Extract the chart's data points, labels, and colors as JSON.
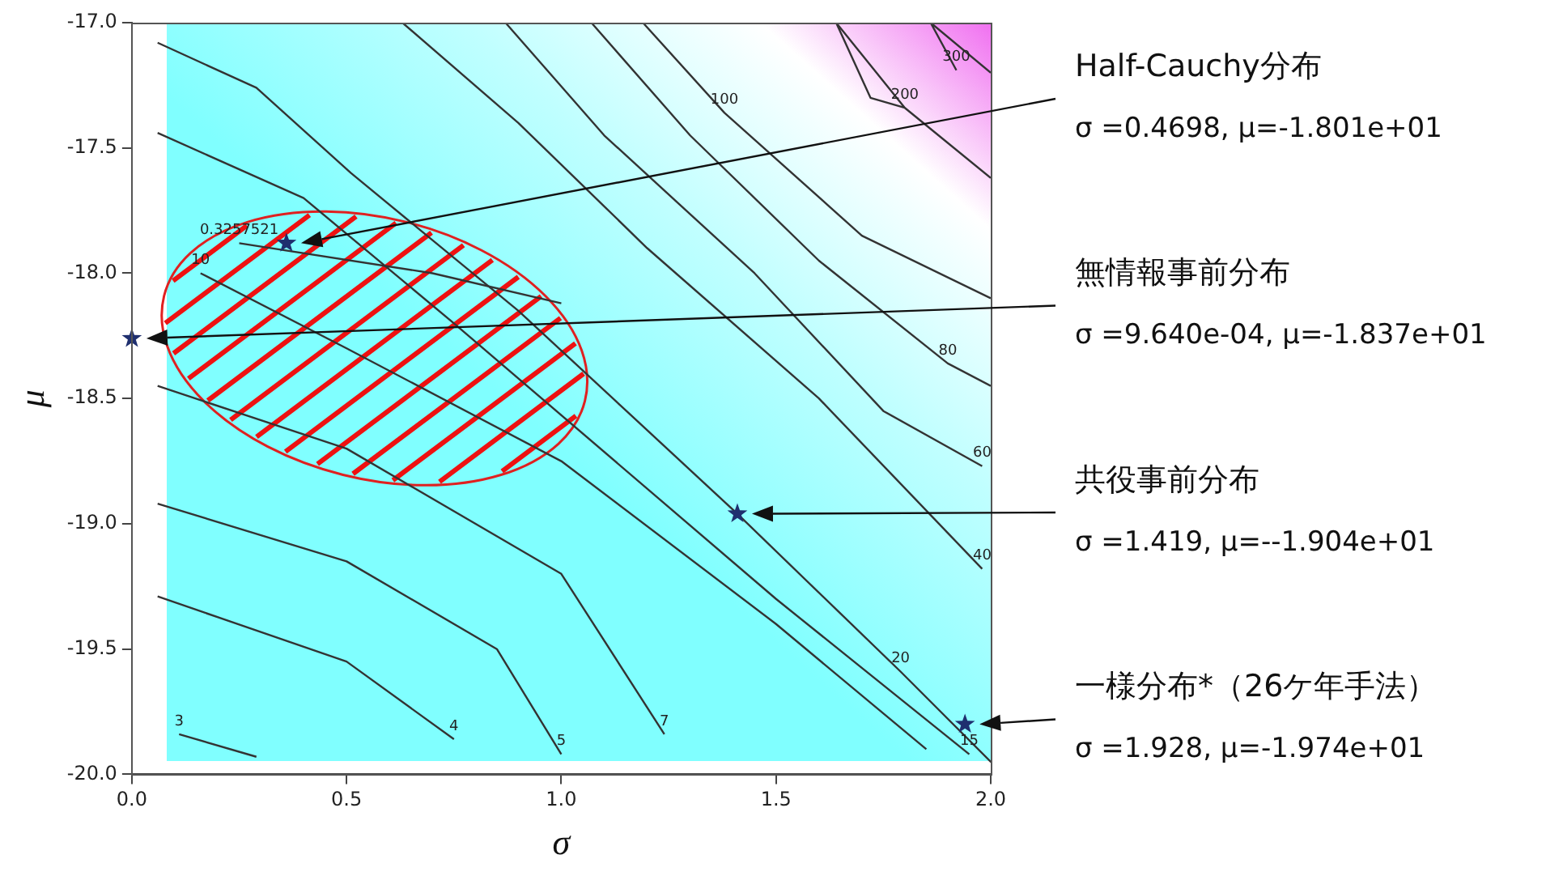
{
  "chart_data": {
    "type": "line",
    "xlabel": "σ",
    "ylabel": "μ",
    "xlim": [
      0,
      2
    ],
    "ylim": [
      -20,
      -17
    ],
    "xticks": [
      {
        "value": 0,
        "label": "0.0"
      },
      {
        "value": 0.5,
        "label": "0.5"
      },
      {
        "value": 1,
        "label": "1.0"
      },
      {
        "value": 1.5,
        "label": "1.5"
      },
      {
        "value": 2,
        "label": "2.0"
      }
    ],
    "yticks": [
      {
        "value": -20,
        "label": "-20.0"
      },
      {
        "value": -19.5,
        "label": "-19.5"
      },
      {
        "value": -19,
        "label": "-19.0"
      },
      {
        "value": -18.5,
        "label": "-18.5"
      },
      {
        "value": -18,
        "label": "-18.0"
      },
      {
        "value": -17.5,
        "label": "-17.5"
      },
      {
        "value": -17,
        "label": "-17.0"
      }
    ],
    "marker": "none",
    "legend": false,
    "series": [
      {
        "name": "300",
        "color": "#333333",
        "x": [
          1.92,
          1.86,
          2.0
        ],
        "values": [
          -17.19,
          -17.0,
          -17.2
        ]
      },
      {
        "name": "200",
        "color": "#333333",
        "x": [
          1.8,
          1.72,
          1.64,
          1.8,
          2.0
        ],
        "values": [
          -17.34,
          -17.3,
          -17.0,
          -17.34,
          -17.62
        ]
      },
      {
        "name": "100",
        "color": "#333333",
        "x": [
          1.38,
          1.19,
          1.38,
          1.7,
          2.0
        ],
        "values": [
          -17.36,
          -17.0,
          -17.36,
          -17.85,
          -18.1
        ]
      },
      {
        "name": "80",
        "color": "#333333",
        "x": [
          1.9,
          1.6,
          1.3,
          1.07,
          1.3,
          1.6,
          1.9,
          2.0
        ],
        "values": [
          -18.36,
          -17.95,
          -17.45,
          -17.0,
          -17.45,
          -17.95,
          -18.36,
          -18.45
        ]
      },
      {
        "name": "60",
        "color": "#333333",
        "x": [
          1.98,
          1.75,
          1.45,
          1.1,
          0.87
        ],
        "values": [
          -18.77,
          -18.55,
          -18.0,
          -17.45,
          -17.0
        ]
      },
      {
        "name": "40",
        "color": "#333333",
        "x": [
          1.98,
          1.6,
          1.2,
          0.9,
          0.63
        ],
        "values": [
          -19.18,
          -18.5,
          -17.9,
          -17.4,
          -17.0
        ]
      },
      {
        "name": "20",
        "color": "#333333",
        "x": [
          1.79,
          2.0,
          1.79,
          1.41,
          0.9,
          0.51,
          0.29,
          0.06
        ],
        "values": [
          -19.59,
          -19.95,
          -19.59,
          -18.96,
          -18.15,
          -17.6,
          -17.26,
          -17.08
        ]
      },
      {
        "name": "15",
        "color": "#333333",
        "x": [
          1.95,
          1.5,
          0.75,
          0.4,
          0.06
        ],
        "values": [
          -19.92,
          -19.3,
          -18.2,
          -17.7,
          -17.44
        ]
      },
      {
        "name": "0.3257521",
        "color": "#333333",
        "x": [
          0.25,
          0.7,
          1.0
        ],
        "values": [
          -17.88,
          -18.0,
          -18.12
        ]
      },
      {
        "name": "10",
        "color": "#333333",
        "x": [
          0.16,
          0.5,
          1.0,
          1.5,
          1.85
        ],
        "values": [
          -18.0,
          -18.3,
          -18.75,
          -19.4,
          -19.9
        ]
      },
      {
        "name": "7",
        "color": "#333333",
        "x": [
          1.24,
          1.0,
          0.5,
          0.06
        ],
        "values": [
          -19.84,
          -19.2,
          -18.7,
          -18.45
        ]
      },
      {
        "name": "5",
        "color": "#333333",
        "x": [
          1.0,
          0.85,
          0.5,
          0.06
        ],
        "values": [
          -19.92,
          -19.5,
          -19.15,
          -18.92
        ]
      },
      {
        "name": "4",
        "color": "#333333",
        "x": [
          0.75,
          0.5,
          0.06
        ],
        "values": [
          -19.86,
          -19.55,
          -19.29
        ]
      },
      {
        "name": "3",
        "color": "#333333",
        "x": [
          0.11,
          0.29
        ],
        "values": [
          -19.84,
          -19.93
        ]
      },
      {
        "type": "scatter",
        "marker": "star",
        "color": "#1f2f6f",
        "x": [
          0.36,
          0.0,
          1.41,
          1.94
        ],
        "values": [
          -17.88,
          -18.26,
          -18.96,
          -19.8
        ]
      }
    ],
    "annotations": [
      "Half-Cauchy分布",
      "σ =0.4698, μ=-1.801e+01",
      "無情報事前分布",
      "σ =9.640e-04, μ=-1.837e+01",
      "共役事前分布",
      "σ =1.419, μ=--1.904e+01",
      "一様分布*（26ケ年手法）",
      "σ =1.928, μ=-1.974e+01"
    ]
  }
}
